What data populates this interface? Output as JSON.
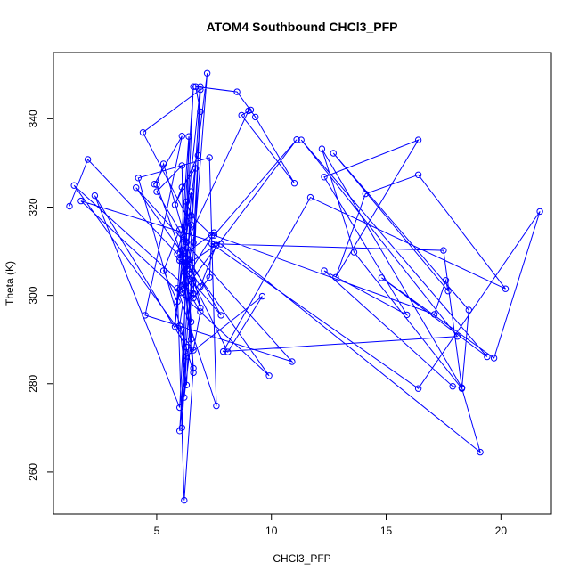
{
  "chart_data": {
    "type": "line",
    "title": "ATOM4 Southbound CHCl3_PFP",
    "xlabel": "CHCl3_PFP",
    "ylabel": "Theta (K)",
    "xlim": [
      0.5,
      22.2
    ],
    "ylim": [
      250.5,
      355.0
    ],
    "xticks": [
      5,
      10,
      15,
      20
    ],
    "yticks": [
      260,
      280,
      300,
      320,
      340
    ],
    "grid": false,
    "legend": "none",
    "series_color": "#0000ff",
    "marker": "open-circle",
    "series": [
      {
        "x": [
          1.2,
          2.0,
          5.9,
          6.5,
          6.0,
          2.3,
          6.3,
          6.1,
          6.4,
          5.8,
          6.9,
          6.0,
          7.2,
          6.0,
          6.6,
          6.2,
          6.1,
          5.0,
          6.3,
          5.3,
          5.0,
          6.9,
          6.2,
          6.6,
          6.2,
          5.9,
          7.6,
          7.3,
          4.2,
          6.6,
          6.0,
          5.3,
          5.9,
          6.6,
          6.8,
          5.8,
          6.1,
          6.7,
          6.3,
          6.0,
          6.6,
          6.2,
          6.3,
          6.5,
          7.4,
          7.3,
          6.6,
          6.9,
          4.4,
          6.5,
          6.2,
          7.8,
          6.4,
          6.0,
          6.3,
          6.9,
          6.7,
          8.5,
          9.3,
          11.0,
          8.7,
          9.1,
          9.0,
          6.0,
          7.5,
          6.4,
          8.1,
          9.6,
          6.3,
          6.2,
          6.5,
          6.1,
          6.9,
          7.6,
          6.3,
          6.5,
          6.1,
          6.1,
          6.6,
          1.4,
          6.6,
          6.9,
          6.2,
          6.1,
          11.1,
          7.5,
          17.1,
          17.6,
          17.7,
          12.7,
          18.6,
          18.3,
          13.6,
          12.2,
          18.3,
          17.9,
          12.3,
          15.9,
          12.3,
          16.4,
          12.8,
          14.1,
          16.4,
          20.2,
          11.7,
          7.9,
          18.1,
          11.3,
          19.4,
          14.8,
          19.7,
          21.7,
          16.4,
          7.4,
          17.5,
          18.3,
          19.1,
          7.8,
          1.7,
          9.9,
          4.1,
          10.9,
          4.5,
          6.1,
          4.9
        ],
        "y": [
          320.2,
          330.8,
          309.4,
          323.5,
          274.6,
          322.6,
          288.3,
          270.0,
          336.0,
          292.9,
          347.3,
          269.3,
          350.3,
          301.3,
          347.3,
          301.6,
          329.4,
          323.5,
          312.0,
          329.8,
          325.1,
          297.2,
          315.5,
          283.5,
          253.6,
          301.6,
          275.0,
          331.2,
          326.6,
          282.5,
          314.9,
          305.6,
          298.6,
          312.0,
          331.7,
          320.5,
          324.5,
          328.8,
          306.6,
          307.9,
          303.2,
          312.7,
          321.2,
          318.1,
          313.6,
          304.1,
          299.4,
          346.6,
          336.9,
          316.0,
          305.3,
          295.5,
          308.3,
          293.1,
          279.7,
          341.6,
          347.3,
          346.1,
          340.4,
          325.4,
          340.8,
          342.0,
          341.8,
          308.6,
          314.2,
          304.9,
          287.2,
          299.8,
          286.2,
          276.9,
          290.1,
          309.0,
          302.0,
          311.4,
          306.9,
          294.0,
          310.3,
          307.5,
          300.4,
          324.9,
          287.6,
          296.3,
          302.5,
          300.6,
          335.3,
          313.6,
          295.7,
          303.4,
          301.0,
          332.2,
          296.7,
          278.9,
          309.8,
          333.2,
          279.1,
          279.4,
          305.6,
          295.6,
          326.8,
          335.2,
          304.1,
          323.0,
          327.3,
          301.5,
          322.2,
          287.3,
          290.7,
          335.2,
          286.1,
          304.0,
          285.8,
          319.0,
          278.9,
          311.7,
          310.2,
          279.0,
          264.5,
          311.6,
          321.4,
          281.8,
          324.4,
          285.0,
          295.5,
          336.1,
          325.2
        ]
      }
    ]
  }
}
